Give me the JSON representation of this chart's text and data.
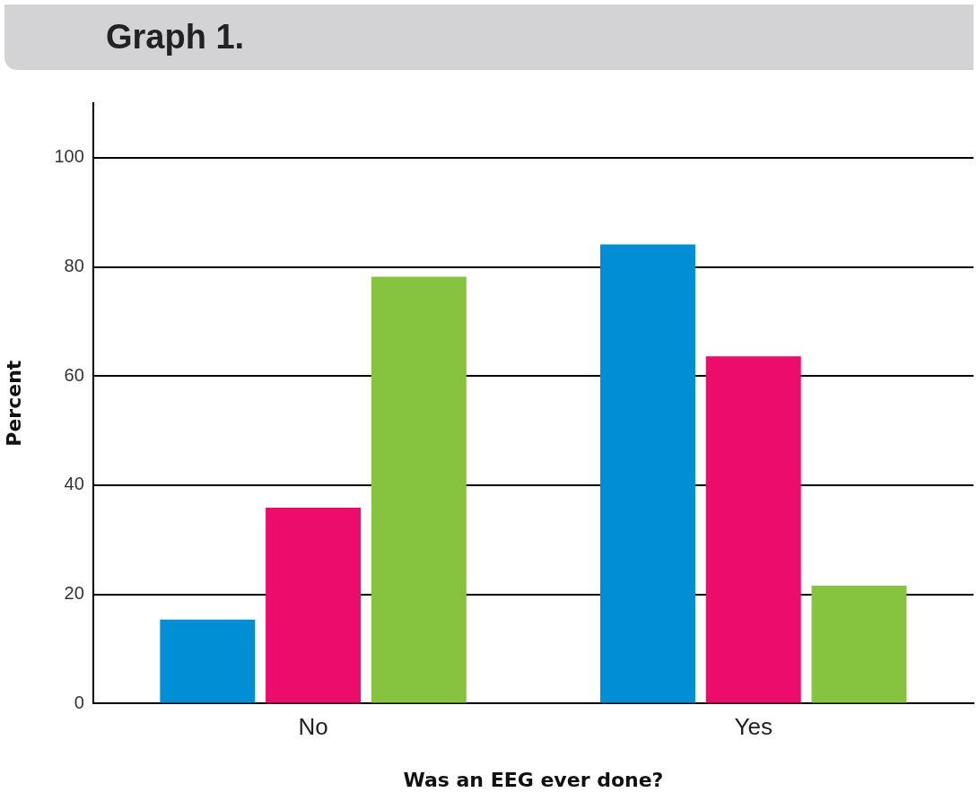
{
  "chart_data": {
    "type": "bar",
    "title": "Graph 1.",
    "xlabel": "Was an EEG ever done?",
    "ylabel": "Percent",
    "categories": [
      "No",
      "Yes"
    ],
    "series": [
      {
        "color": "#008fd5",
        "values": [
          15.4,
          84.1
        ]
      },
      {
        "color": "#ec0c6c",
        "values": [
          35.9,
          63.6
        ]
      },
      {
        "color": "#86c440",
        "values": [
          78.2,
          21.6
        ]
      }
    ],
    "ylim": [
      0,
      110
    ],
    "yticks": [
      0,
      20,
      40,
      60,
      80,
      100
    ],
    "grid": "y",
    "legend": false
  }
}
